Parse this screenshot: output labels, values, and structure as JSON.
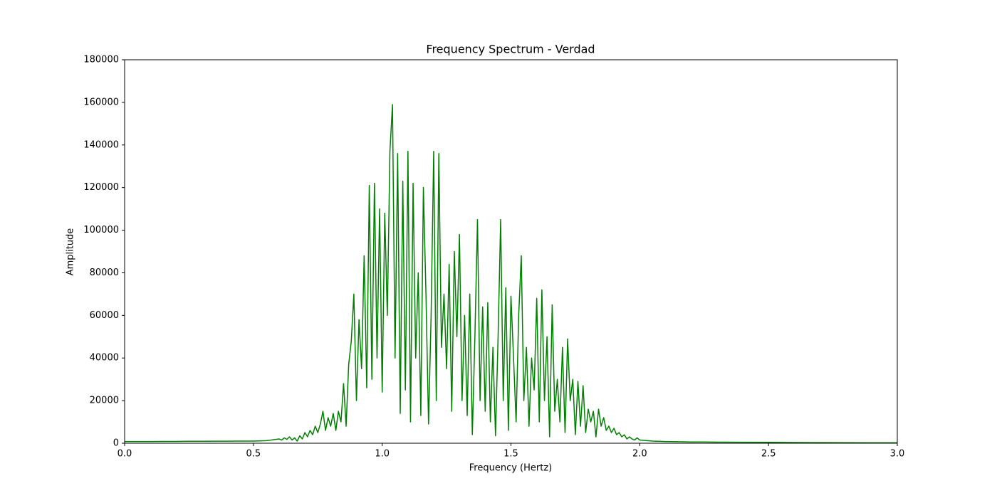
{
  "chart_data": {
    "type": "line",
    "title": "Frequency Spectrum - Verdad",
    "xlabel": "Frequency (Hertz)",
    "ylabel": "Amplitude",
    "color": "#008000",
    "x": [
      0,
      0.05,
      0.1,
      0.15,
      0.2,
      0.25,
      0.3,
      0.35,
      0.4,
      0.45,
      0.5,
      0.55,
      0.6,
      0.61,
      0.62,
      0.63,
      0.64,
      0.65,
      0.66,
      0.67,
      0.68,
      0.69,
      0.7,
      0.71,
      0.72,
      0.73,
      0.74,
      0.75,
      0.76,
      0.77,
      0.78,
      0.79,
      0.8,
      0.81,
      0.82,
      0.83,
      0.84,
      0.85,
      0.86,
      0.87,
      0.88,
      0.89,
      0.9,
      0.91,
      0.92,
      0.93,
      0.94,
      0.95,
      0.96,
      0.97,
      0.98,
      0.99,
      1,
      1.01,
      1.02,
      1.03,
      1.04,
      1.05,
      1.06,
      1.07,
      1.08,
      1.09,
      1.1,
      1.11,
      1.12,
      1.13,
      1.14,
      1.15,
      1.16,
      1.17,
      1.18,
      1.19,
      1.2,
      1.21,
      1.22,
      1.23,
      1.24,
      1.25,
      1.26,
      1.27,
      1.28,
      1.29,
      1.3,
      1.31,
      1.32,
      1.33,
      1.34,
      1.35,
      1.36,
      1.37,
      1.38,
      1.39,
      1.4,
      1.41,
      1.42,
      1.43,
      1.44,
      1.45,
      1.46,
      1.47,
      1.48,
      1.49,
      1.5,
      1.51,
      1.52,
      1.53,
      1.54,
      1.55,
      1.56,
      1.57,
      1.58,
      1.59,
      1.6,
      1.61,
      1.62,
      1.63,
      1.64,
      1.65,
      1.66,
      1.67,
      1.68,
      1.69,
      1.7,
      1.71,
      1.72,
      1.73,
      1.74,
      1.75,
      1.76,
      1.77,
      1.78,
      1.79,
      1.8,
      1.81,
      1.82,
      1.83,
      1.84,
      1.85,
      1.86,
      1.87,
      1.88,
      1.89,
      1.9,
      1.91,
      1.92,
      1.93,
      1.94,
      1.95,
      1.96,
      1.97,
      1.98,
      1.99,
      2,
      2.05,
      2.1,
      2.15,
      2.2,
      2.25,
      2.3,
      2.4,
      2.5,
      2.6,
      2.7,
      2.8,
      2.9,
      3
    ],
    "values": [
      800,
      800,
      800,
      850,
      850,
      900,
      900,
      950,
      950,
      1000,
      1000,
      1200,
      2000,
      1500,
      2500,
      1800,
      3000,
      1500,
      2500,
      1000,
      3500,
      2000,
      5000,
      3000,
      6000,
      4000,
      8000,
      5000,
      9000,
      15000,
      6000,
      12000,
      8000,
      14000,
      6000,
      15000,
      10000,
      28000,
      8000,
      37000,
      48000,
      70000,
      20000,
      58000,
      35000,
      88000,
      26000,
      121000,
      30000,
      122000,
      40000,
      110000,
      24000,
      108000,
      60000,
      137000,
      159000,
      40000,
      136000,
      14000,
      123000,
      25000,
      137000,
      10000,
      122000,
      40000,
      80000,
      13000,
      120000,
      70000,
      9000,
      60000,
      137000,
      20000,
      136000,
      45000,
      70000,
      35000,
      84000,
      15000,
      90000,
      50000,
      98000,
      20000,
      60000,
      13000,
      70000,
      4000,
      50000,
      105000,
      20000,
      64000,
      15000,
      66000,
      10000,
      45000,
      3500,
      50000,
      105000,
      20000,
      73000,
      6000,
      69000,
      40000,
      10000,
      60000,
      88000,
      20000,
      45000,
      8000,
      40000,
      25000,
      68000,
      10000,
      72000,
      20000,
      50000,
      3000,
      65000,
      15000,
      30000,
      10000,
      45000,
      5000,
      49000,
      20000,
      30000,
      4000,
      29000,
      8000,
      27000,
      5000,
      16000,
      10000,
      15000,
      3000,
      16000,
      8000,
      12000,
      6000,
      8000,
      5000,
      7000,
      4000,
      5000,
      3000,
      4000,
      2000,
      3000,
      2000,
      1500,
      2500,
      1500,
      1000,
      800,
      700,
      600,
      600,
      500,
      450,
      400,
      350,
      300,
      250,
      220,
      200
    ],
    "xlim": [
      0,
      3
    ],
    "xticks": [
      {
        "value": 0,
        "label": "0.0"
      },
      0.5,
      {
        "value": 1,
        "label": "1.0"
      },
      1.5,
      {
        "value": 2,
        "label": "2.0"
      },
      2.5,
      {
        "value": 3,
        "label": "3.0"
      }
    ],
    "ylim": [
      0,
      180000
    ],
    "yticks": [
      0,
      20000,
      40000,
      60000,
      80000,
      100000,
      120000,
      140000,
      160000,
      180000
    ],
    "grid": false
  }
}
